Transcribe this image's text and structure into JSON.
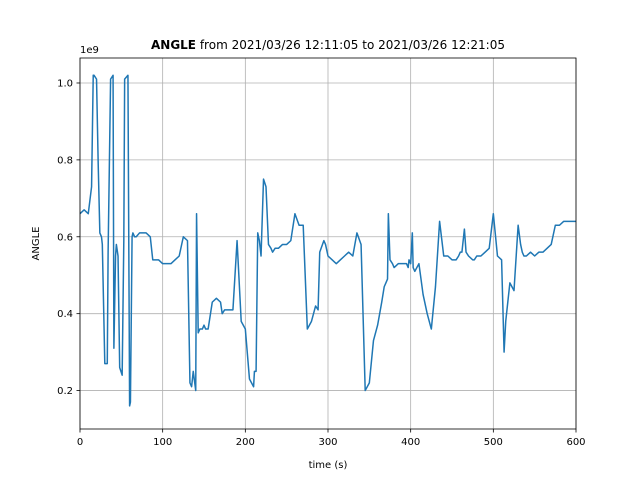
{
  "chart_data": {
    "type": "line",
    "title_bold": "ANGLE",
    "title_rest": " from 2021/03/26 12:11:05 to 2021/03/26 12:21:05",
    "xlabel": "time (s)",
    "ylabel": "ANGLE",
    "offset_text": "1e9",
    "xlim": [
      0,
      600
    ],
    "ylim": [
      0.1,
      1.065
    ],
    "xticks": [
      0,
      100,
      200,
      300,
      400,
      500,
      600
    ],
    "xtick_labels": [
      "0",
      "100",
      "200",
      "300",
      "400",
      "500",
      "600"
    ],
    "yticks": [
      0.2,
      0.4,
      0.6,
      0.8,
      1.0
    ],
    "ytick_labels": [
      "0.2",
      "0.4",
      "0.6",
      "0.8",
      "1.0"
    ],
    "grid": true,
    "line_color": "#1f77b4",
    "series": [
      {
        "x": [
          0,
          5,
          10,
          14,
          16,
          17,
          20,
          22,
          24,
          26,
          27,
          30,
          33,
          34,
          37,
          40,
          41,
          43,
          44,
          46,
          48,
          51,
          53,
          54,
          58,
          60,
          61,
          63,
          64,
          66,
          68,
          72,
          80,
          85,
          88,
          90,
          95,
          100,
          105,
          110,
          115,
          120,
          125,
          130,
          133,
          135,
          137,
          140,
          141,
          143,
          145,
          147,
          148,
          150,
          152,
          155,
          160,
          165,
          170,
          172,
          175,
          180,
          185,
          190,
          195,
          200,
          205,
          210,
          211,
          213,
          215,
          217,
          219,
          222,
          225,
          228,
          231,
          233,
          236,
          240,
          245,
          250,
          255,
          260,
          265,
          270,
          275,
          280,
          285,
          288,
          290,
          295,
          297,
          300,
          305,
          310,
          315,
          320,
          325,
          330,
          335,
          340,
          345,
          350,
          355,
          360,
          365,
          368,
          370,
          372,
          373,
          375,
          378,
          380,
          385,
          390,
          395,
          397,
          398,
          400,
          402,
          403,
          405,
          410,
          415,
          420,
          425,
          430,
          435,
          440,
          445,
          450,
          455,
          458,
          460,
          462,
          465,
          467,
          470,
          475,
          477,
          480,
          485,
          490,
          495,
          500,
          505,
          510,
          513,
          515,
          520,
          525,
          530,
          533,
          535,
          537,
          540,
          545,
          550,
          555,
          560,
          565,
          570,
          575,
          580,
          585,
          590,
          595,
          600
        ],
        "values": [
          0.66,
          0.67,
          0.66,
          0.73,
          1.02,
          1.02,
          1.01,
          0.79,
          0.61,
          0.6,
          0.58,
          0.27,
          0.27,
          0.56,
          1.01,
          1.02,
          0.31,
          0.55,
          0.58,
          0.55,
          0.26,
          0.24,
          0.59,
          1.01,
          1.02,
          0.16,
          0.17,
          0.6,
          0.61,
          0.6,
          0.6,
          0.61,
          0.61,
          0.6,
          0.54,
          0.54,
          0.54,
          0.53,
          0.53,
          0.53,
          0.54,
          0.55,
          0.6,
          0.59,
          0.22,
          0.21,
          0.25,
          0.2,
          0.66,
          0.35,
          0.36,
          0.36,
          0.36,
          0.37,
          0.36,
          0.36,
          0.43,
          0.44,
          0.43,
          0.4,
          0.41,
          0.41,
          0.41,
          0.59,
          0.38,
          0.36,
          0.23,
          0.21,
          0.25,
          0.25,
          0.61,
          0.59,
          0.55,
          0.75,
          0.73,
          0.58,
          0.57,
          0.56,
          0.57,
          0.57,
          0.58,
          0.58,
          0.59,
          0.66,
          0.63,
          0.63,
          0.36,
          0.38,
          0.42,
          0.41,
          0.56,
          0.59,
          0.58,
          0.55,
          0.54,
          0.53,
          0.54,
          0.55,
          0.56,
          0.55,
          0.61,
          0.58,
          0.2,
          0.22,
          0.33,
          0.37,
          0.43,
          0.47,
          0.48,
          0.49,
          0.66,
          0.54,
          0.53,
          0.52,
          0.53,
          0.53,
          0.53,
          0.52,
          0.54,
          0.53,
          0.61,
          0.52,
          0.51,
          0.53,
          0.45,
          0.4,
          0.36,
          0.47,
          0.64,
          0.55,
          0.55,
          0.54,
          0.54,
          0.55,
          0.56,
          0.56,
          0.62,
          0.56,
          0.55,
          0.54,
          0.54,
          0.55,
          0.55,
          0.56,
          0.57,
          0.66,
          0.55,
          0.54,
          0.3,
          0.38,
          0.48,
          0.46,
          0.63,
          0.58,
          0.56,
          0.55,
          0.55,
          0.56,
          0.55,
          0.56,
          0.56,
          0.57,
          0.58,
          0.63,
          0.63,
          0.64,
          0.64,
          0.64,
          0.64
        ]
      }
    ]
  }
}
